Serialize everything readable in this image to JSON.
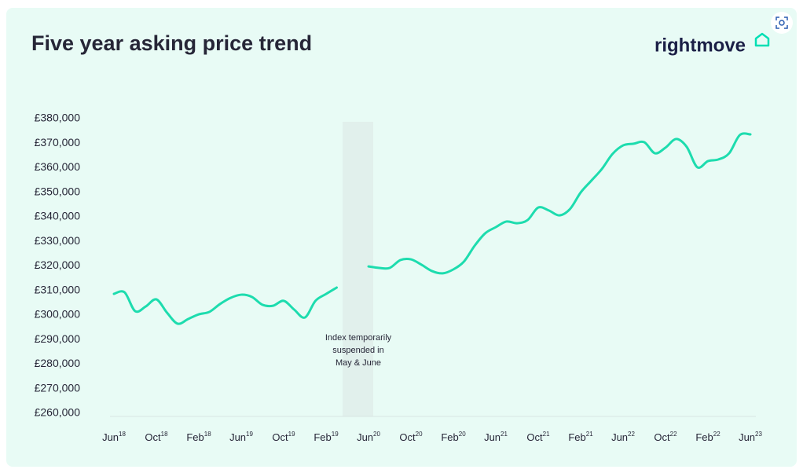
{
  "chart_data": {
    "type": "line",
    "title": "Five year asking price trend",
    "brand": "rightmove",
    "annotation": [
      "Index temporarily",
      "suspended in",
      "May & June"
    ],
    "categories": [
      "Jun18",
      null,
      null,
      null,
      "Oct18",
      null,
      null,
      null,
      "Feb18",
      null,
      null,
      null,
      "Jun19",
      null,
      null,
      null,
      "Oct19",
      null,
      null,
      null,
      "Feb19",
      null,
      null,
      null,
      "Jun20",
      null,
      null,
      null,
      "Oct20",
      null,
      null,
      null,
      "Feb20",
      null,
      null,
      null,
      "Jun21",
      null,
      null,
      null,
      "Oct21",
      null,
      null,
      null,
      "Feb21",
      null,
      null,
      null,
      "Jun22",
      null,
      null,
      null,
      "Oct22",
      null,
      null,
      null,
      "Feb22",
      null,
      null,
      null,
      "Jun23"
    ],
    "values": [
      308640,
      309280,
      301600,
      303500,
      306400,
      301000,
      296500,
      298400,
      300300,
      301300,
      304500,
      307000,
      308300,
      307400,
      304200,
      303800,
      305800,
      302200,
      299000,
      305800,
      308600,
      311200,
      null,
      null,
      319800,
      319200,
      319200,
      322400,
      322700,
      320500,
      317900,
      317000,
      318600,
      321800,
      328200,
      333300,
      335800,
      338100,
      337400,
      338700,
      343800,
      342600,
      340600,
      343200,
      349900,
      354700,
      359500,
      365600,
      369100,
      369800,
      370400,
      365900,
      368200,
      371700,
      368500,
      360200,
      362700,
      363400,
      365900,
      373300,
      373600
    ],
    "color": "#1ddcae",
    "ylim": [
      260000,
      380000
    ],
    "yticks": [
      {
        "value": 260000,
        "label": "£260,000"
      },
      {
        "value": 270000,
        "label": "£270,000"
      },
      {
        "value": 280000,
        "label": "£280,000"
      },
      {
        "value": 290000,
        "label": "£290,000"
      },
      {
        "value": 300000,
        "label": "£300,000"
      },
      {
        "value": 310000,
        "label": "£310,000"
      },
      {
        "value": 320000,
        "label": "£320,000"
      },
      {
        "value": 330000,
        "label": "£330,000"
      },
      {
        "value": 340000,
        "label": "£340,000"
      },
      {
        "value": 350000,
        "label": "£350,000"
      },
      {
        "value": 360000,
        "label": "£360,000"
      },
      {
        "value": 370000,
        "label": "£370,000"
      },
      {
        "value": 380000,
        "label": "£380,000"
      }
    ],
    "grid": false
  }
}
